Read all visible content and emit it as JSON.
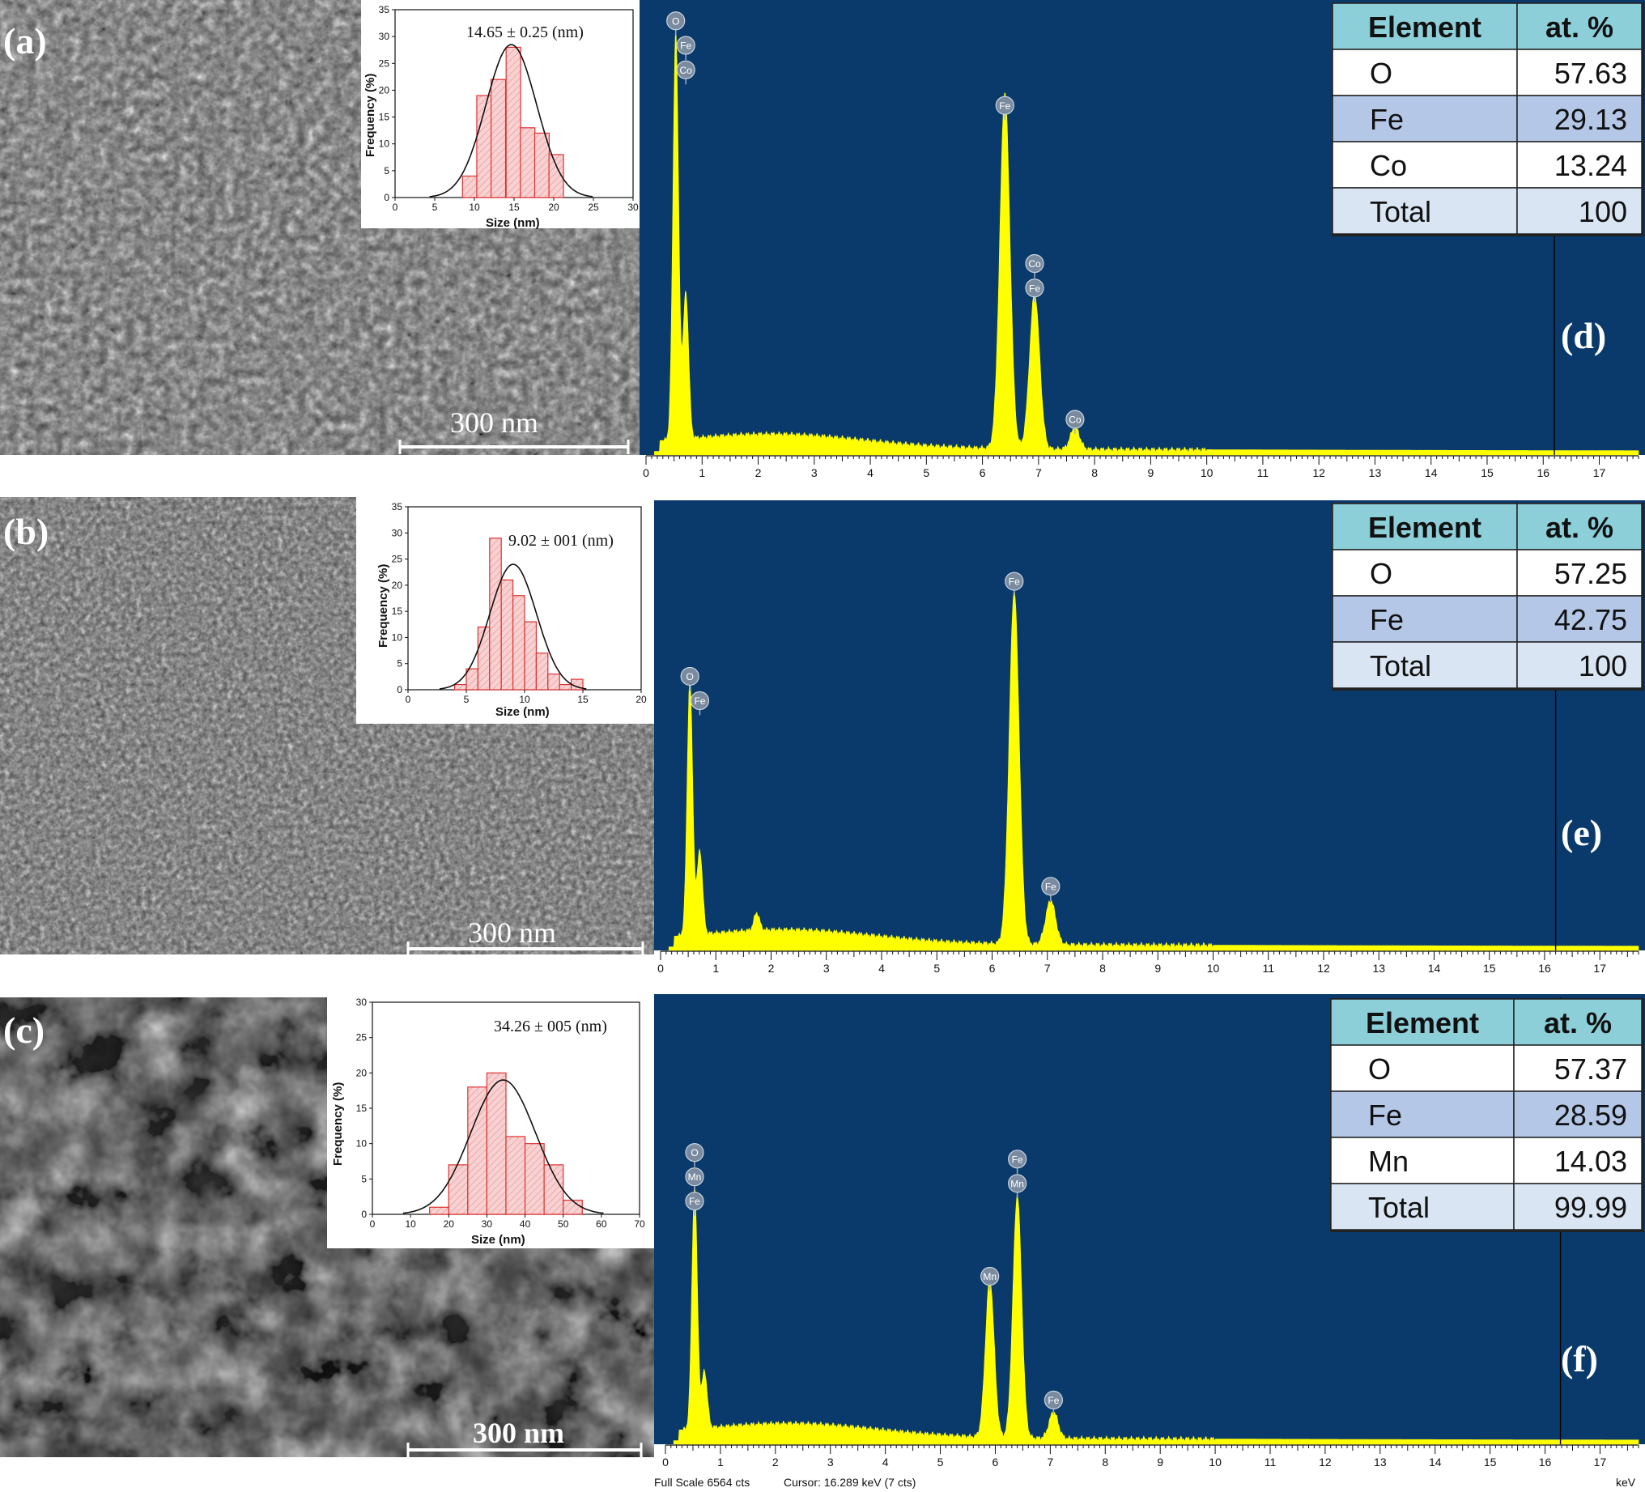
{
  "chart_data": [
    {
      "type": "bar",
      "panel": "a",
      "annotation": "14.65 ± 0.25 (nm)",
      "xlabel": "Size (nm)",
      "ylabel": "Frequency (%)",
      "x_ticks": [
        0,
        5,
        10,
        15,
        20,
        25,
        30
      ],
      "y_ticks": [
        0,
        5,
        10,
        15,
        20,
        25,
        30,
        35
      ],
      "xlim": [
        0,
        30
      ],
      "ylim": [
        0,
        35
      ],
      "bin_width": 1.83,
      "bins_start": [
        8.5,
        10.3,
        12.1,
        14.0,
        15.8,
        17.6,
        19.4
      ],
      "values": [
        4,
        19,
        22,
        28,
        13,
        12,
        8
      ],
      "fit": {
        "mean": 14.65,
        "sigma": 3.2,
        "peak": 28.5
      }
    },
    {
      "type": "bar",
      "panel": "b",
      "annotation": "9.02 ± 001 (nm)",
      "xlabel": "Size (nm)",
      "ylabel": "Frequency (%)",
      "x_ticks": [
        0,
        5,
        10,
        15,
        20
      ],
      "y_ticks": [
        0,
        5,
        10,
        15,
        20,
        25,
        30,
        35
      ],
      "xlim": [
        0,
        20
      ],
      "ylim": [
        0,
        35
      ],
      "bin_width": 1.0,
      "bins_start": [
        4,
        5,
        6,
        7,
        8,
        9,
        10,
        11,
        12,
        13,
        14
      ],
      "values": [
        1,
        4,
        12,
        29,
        21,
        18,
        13,
        7,
        3,
        1,
        2
      ],
      "fit": {
        "mean": 9.02,
        "sigma": 2.0,
        "peak": 24
      }
    },
    {
      "type": "bar",
      "panel": "c",
      "annotation": "34.26 ± 005 (nm)",
      "xlabel": "Size (nm)",
      "ylabel": "Frequency (%)",
      "x_ticks": [
        0,
        10,
        20,
        30,
        40,
        50,
        60,
        70
      ],
      "y_ticks": [
        0,
        5,
        10,
        15,
        20,
        25,
        30
      ],
      "xlim": [
        0,
        70
      ],
      "ylim": [
        0,
        30
      ],
      "bin_width": 5,
      "bins_start": [
        15,
        20,
        25,
        30,
        35,
        40,
        45,
        50
      ],
      "values": [
        1,
        7,
        18,
        20,
        11,
        10,
        7,
        2
      ],
      "fit": {
        "mean": 34.26,
        "sigma": 8.5,
        "peak": 19
      }
    },
    {
      "type": "area",
      "panel": "d",
      "xlabel": "",
      "x_ticks": [
        0,
        1,
        2,
        3,
        4,
        5,
        6,
        7,
        8,
        9,
        10,
        11,
        12,
        13,
        14,
        15,
        16,
        17
      ],
      "xlim": [
        0,
        17.7
      ],
      "cursor_keV": 16.2,
      "peaks": [
        {
          "keV": 0.53,
          "height": 0.92,
          "width": 0.05
        },
        {
          "keV": 0.71,
          "height": 0.33,
          "width": 0.05
        },
        {
          "keV": 6.4,
          "height": 0.8,
          "width": 0.09
        },
        {
          "keV": 6.93,
          "height": 0.35,
          "width": 0.09
        },
        {
          "keV": 7.65,
          "height": 0.05,
          "width": 0.08
        }
      ],
      "peak_labels": [
        {
          "text": "O",
          "keV": 0.53,
          "level": 0.975
        },
        {
          "text": "Fe",
          "keV": 0.71,
          "level": 0.92
        },
        {
          "text": "Co",
          "keV": 0.71,
          "level": 0.865
        },
        {
          "text": "Fe",
          "keV": 6.4,
          "level": 0.785
        },
        {
          "text": "Co",
          "keV": 6.93,
          "level": 0.43
        },
        {
          "text": "Fe",
          "keV": 6.93,
          "level": 0.375
        },
        {
          "text": "Co",
          "keV": 7.65,
          "level": 0.08
        }
      ]
    },
    {
      "type": "area",
      "panel": "e",
      "xlabel": "",
      "x_ticks": [
        0,
        1,
        2,
        3,
        4,
        5,
        6,
        7,
        8,
        9,
        10,
        11,
        12,
        13,
        14,
        15,
        16,
        17
      ],
      "xlim": [
        0,
        17.7
      ],
      "cursor_keV": 16.2,
      "peaks": [
        {
          "keV": 0.53,
          "height": 0.58,
          "width": 0.05
        },
        {
          "keV": 0.71,
          "height": 0.19,
          "width": 0.05
        },
        {
          "keV": 1.74,
          "height": 0.04,
          "width": 0.05
        },
        {
          "keV": 6.4,
          "height": 0.8,
          "width": 0.09
        },
        {
          "keV": 7.06,
          "height": 0.1,
          "width": 0.09
        }
      ],
      "peak_labels": [
        {
          "text": "O",
          "keV": 0.53,
          "level": 0.62
        },
        {
          "text": "Fe",
          "keV": 0.71,
          "level": 0.565
        },
        {
          "text": "Fe",
          "keV": 6.4,
          "level": 0.835
        },
        {
          "text": "Fe",
          "keV": 7.06,
          "level": 0.145
        }
      ]
    },
    {
      "type": "area",
      "panel": "f",
      "xlabel": "keV",
      "x_ticks": [
        0,
        1,
        2,
        3,
        4,
        5,
        6,
        7,
        8,
        9,
        10,
        11,
        12,
        13,
        14,
        15,
        16,
        17
      ],
      "xlim": [
        0,
        17.7
      ],
      "cursor_keV": 16.28,
      "peaks": [
        {
          "keV": 0.53,
          "height": 0.55,
          "width": 0.05
        },
        {
          "keV": 0.71,
          "height": 0.13,
          "width": 0.05
        },
        {
          "keV": 5.9,
          "height": 0.36,
          "width": 0.08
        },
        {
          "keV": 6.4,
          "height": 0.55,
          "width": 0.08
        },
        {
          "keV": 7.06,
          "height": 0.06,
          "width": 0.08
        }
      ],
      "peak_labels": [
        {
          "text": "O",
          "keV": 0.53,
          "level": 0.66
        },
        {
          "text": "Mn",
          "keV": 0.53,
          "level": 0.605
        },
        {
          "text": "Fe",
          "keV": 0.53,
          "level": 0.55
        },
        {
          "text": "Mn",
          "keV": 5.9,
          "level": 0.38
        },
        {
          "text": "Fe",
          "keV": 6.4,
          "level": 0.645
        },
        {
          "text": "Mn",
          "keV": 6.4,
          "level": 0.59
        },
        {
          "text": "Fe",
          "keV": 7.06,
          "level": 0.1
        }
      ]
    }
  ],
  "sem_panels": [
    {
      "label": "(a)",
      "scale_bar": "300 nm"
    },
    {
      "label": "(b)",
      "scale_bar": "300 nm"
    },
    {
      "label": "(c)",
      "scale_bar": "300 nm"
    }
  ],
  "eds_panels": [
    {
      "label": "(d)"
    },
    {
      "label": "(e)"
    },
    {
      "label": "(f)"
    }
  ],
  "tables": [
    {
      "header": [
        "Element",
        "at. %"
      ],
      "rows": [
        [
          "O",
          "57.63"
        ],
        [
          "Fe",
          "29.13"
        ],
        [
          "Co",
          "13.24"
        ],
        [
          "Total",
          "100"
        ]
      ]
    },
    {
      "header": [
        "Element",
        "at. %"
      ],
      "rows": [
        [
          "O",
          "57.25"
        ],
        [
          "Fe",
          "42.75"
        ],
        [
          "Total",
          "100"
        ]
      ]
    },
    {
      "header": [
        "Element",
        "at. %"
      ],
      "rows": [
        [
          "O",
          "57.37"
        ],
        [
          "Fe",
          "28.59"
        ],
        [
          "Mn",
          "14.03"
        ],
        [
          "Total",
          "99.99"
        ]
      ]
    }
  ],
  "footer": {
    "full_scale": "Full Scale 6564 cts",
    "cursor": "Cursor: 16.289 keV (7 cts)",
    "unit": "keV"
  },
  "colors": {
    "eds_background": "#0a3a6b",
    "eds_fill": "#ffff00",
    "table_header": "#8ccfd9",
    "table_alt": "#b4c7e7",
    "table_total": "#d9e5f3",
    "hist_bar_fill": "#f6caca",
    "hist_bar_stroke": "#e03030",
    "peak_marker": "#7a8ba0"
  }
}
